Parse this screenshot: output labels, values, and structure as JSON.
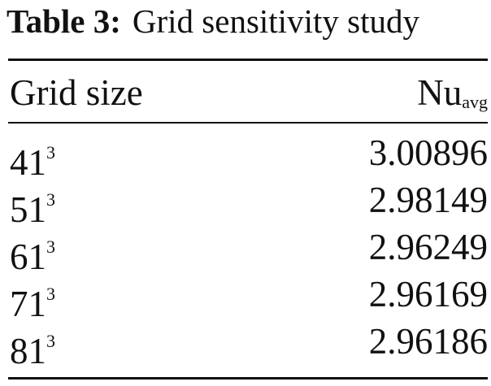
{
  "caption": {
    "label": "Table 3:",
    "text": "Grid sensitivity study"
  },
  "table": {
    "header": [
      {
        "base": "Grid size"
      },
      {
        "base": "Nu",
        "sub": "avg"
      }
    ],
    "rows": [
      [
        {
          "base": "41",
          "sup": "3"
        },
        "3.00896"
      ],
      [
        {
          "base": "51",
          "sup": "3"
        },
        "2.98149"
      ],
      [
        {
          "base": "61",
          "sup": "3"
        },
        "2.96249"
      ],
      [
        {
          "base": "71",
          "sup": "3"
        },
        "2.96169"
      ],
      [
        {
          "base": "81",
          "sup": "3"
        },
        "2.96186"
      ]
    ]
  }
}
